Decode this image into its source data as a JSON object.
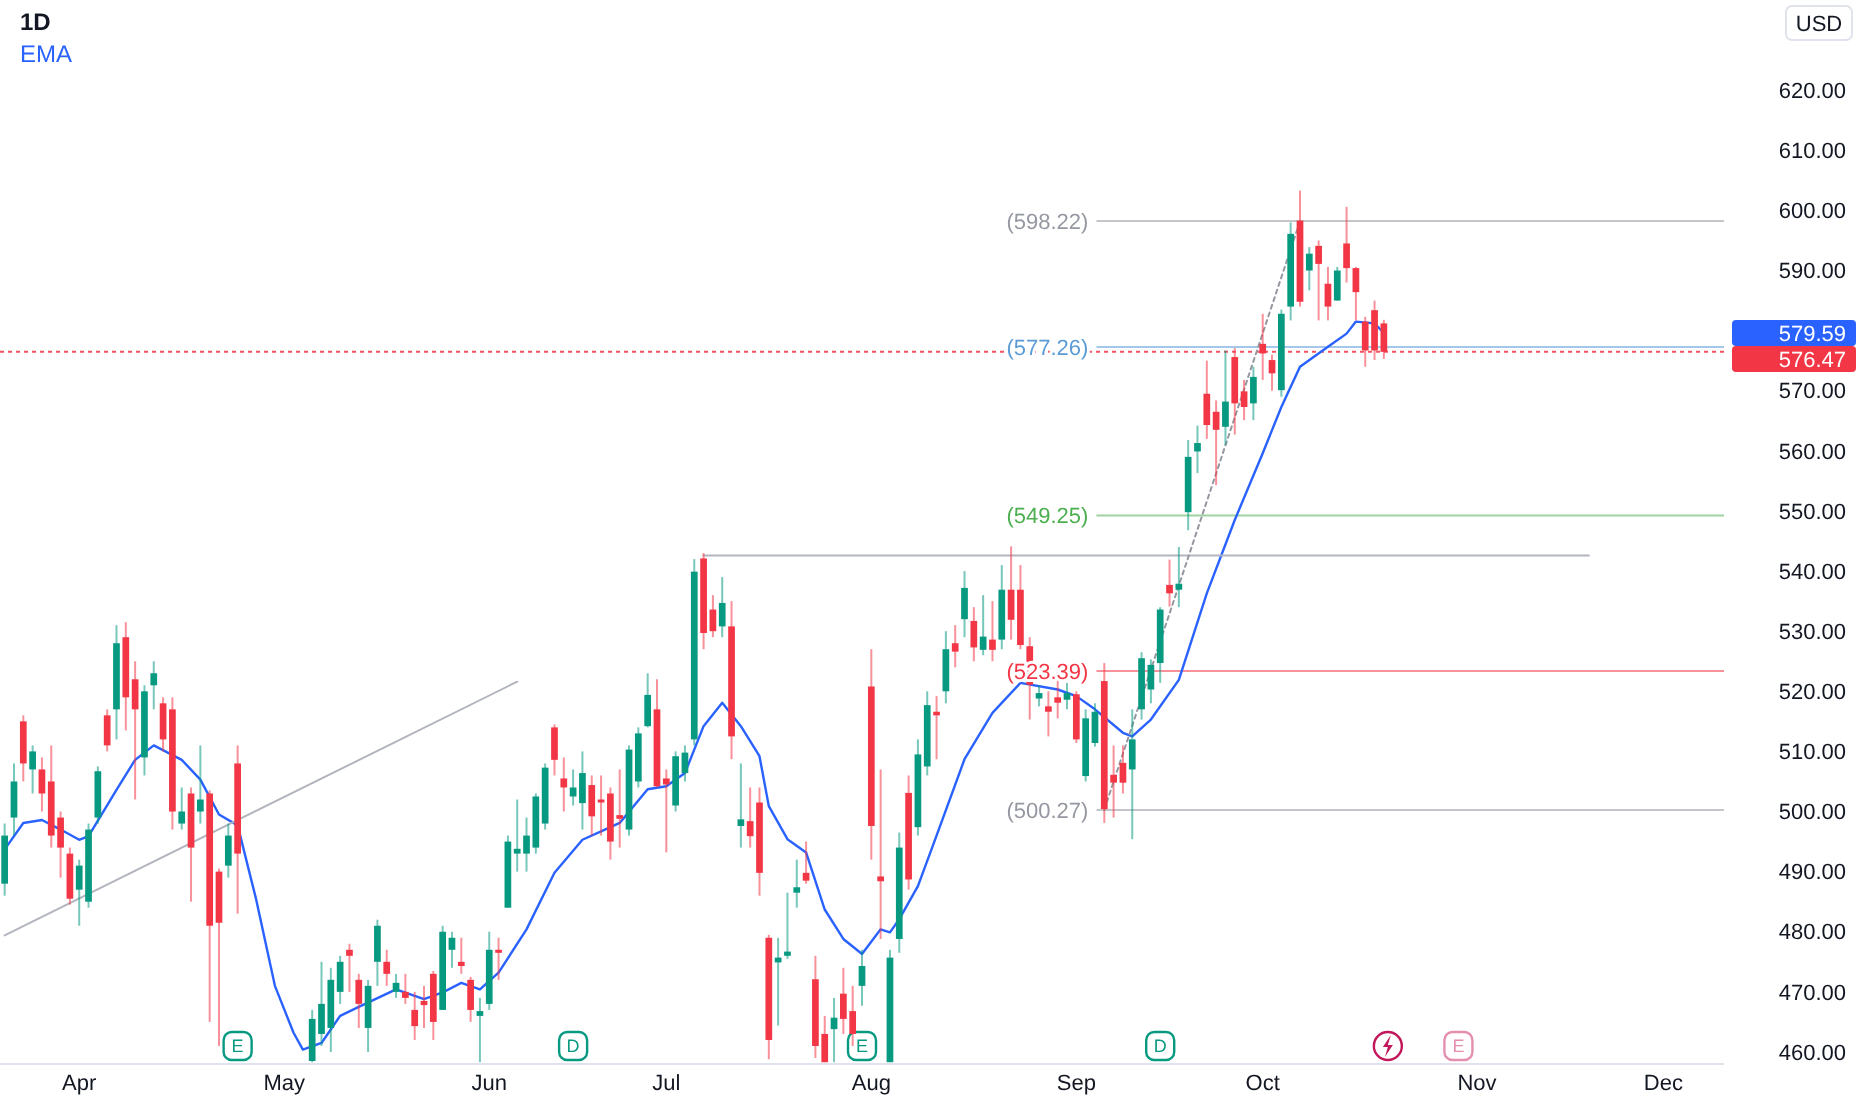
{
  "chart_data": {
    "type": "candlestick",
    "title": "1D",
    "legend": "top left",
    "categories": [
      null,
      null,
      null,
      null,
      null,
      null,
      null,
      null,
      "Apr",
      null,
      null,
      null,
      null,
      null,
      null,
      null,
      null,
      null,
      null,
      null,
      null,
      null,
      null,
      null,
      null,
      null,
      null,
      null,
      null,
      null,
      "May",
      null,
      null,
      null,
      null,
      null,
      null,
      null,
      null,
      null,
      null,
      null,
      null,
      null,
      null,
      null,
      null,
      null,
      null,
      null,
      null,
      null,
      "Jun",
      null,
      null,
      null,
      null,
      null,
      null,
      null,
      null,
      null,
      null,
      null,
      null,
      null,
      null,
      null,
      null,
      null,
      null,
      "Jul",
      null,
      null,
      null,
      null,
      null,
      null,
      null,
      null,
      null,
      null,
      null,
      null,
      null,
      null,
      null,
      null,
      null,
      null,
      null,
      null,
      null,
      "Aug",
      null,
      null,
      null,
      null,
      null,
      null,
      null,
      null,
      null,
      null,
      null,
      null,
      null,
      null,
      null,
      null,
      null,
      null,
      null,
      null,
      null,
      "Sep",
      null,
      null,
      null,
      null,
      null,
      null,
      null,
      null,
      null,
      null,
      null,
      null,
      null,
      null,
      null,
      null,
      null,
      null,
      null,
      "Oct",
      null,
      null,
      null,
      null,
      null,
      null,
      null,
      null,
      null,
      null,
      null,
      null,
      null,
      null,
      null,
      null,
      null,
      null,
      null,
      null,
      null,
      null,
      "Nov",
      null,
      null,
      null,
      null,
      null,
      null,
      null,
      null,
      null,
      null,
      null,
      null,
      null,
      null,
      null,
      null,
      null,
      null,
      null,
      "Dec",
      null,
      null,
      null,
      null,
      null,
      null
    ],
    "ylim": [
      458,
      635
    ],
    "yticks": [
      {
        "value": 460,
        "label": "460.00"
      },
      {
        "value": 470,
        "label": "470.00"
      },
      {
        "value": 480,
        "label": "480.00"
      },
      {
        "value": 490,
        "label": "490.00"
      },
      {
        "value": 500,
        "label": "500.00"
      },
      {
        "value": 510,
        "label": "510.00"
      },
      {
        "value": 520,
        "label": "520.00"
      },
      {
        "value": 530,
        "label": "530.00"
      },
      {
        "value": 540,
        "label": "540.00"
      },
      {
        "value": 550,
        "label": "550.00"
      },
      {
        "value": 560,
        "label": "560.00"
      },
      {
        "value": 570,
        "label": "570.00"
      },
      {
        "value": 590,
        "label": "590.00"
      },
      {
        "value": 600,
        "label": "600.00"
      },
      {
        "value": 610,
        "label": "610.00"
      },
      {
        "value": 620,
        "label": "620.00"
      }
    ],
    "ohlc": [
      [
        488,
        498,
        486,
        496
      ],
      [
        499,
        508,
        496,
        505
      ],
      [
        515,
        516,
        505,
        508
      ],
      [
        507,
        511,
        503,
        510
      ],
      [
        507,
        509,
        500,
        503
      ],
      [
        505,
        511,
        494,
        496
      ],
      [
        499,
        500,
        489,
        494
      ],
      [
        493,
        494,
        484.5,
        485.5
      ],
      [
        487,
        492,
        481,
        491
      ],
      [
        485,
        498,
        484,
        497
      ],
      [
        499,
        507.5,
        498,
        506.7
      ],
      [
        516,
        517,
        510,
        511
      ],
      [
        517,
        531,
        512,
        528
      ],
      [
        529,
        531.5,
        513.5,
        519
      ],
      [
        522,
        525,
        502,
        517
      ],
      [
        509,
        521,
        506,
        520
      ],
      [
        521,
        525,
        517,
        523
      ],
      [
        518,
        519,
        510,
        512
      ],
      [
        517,
        519,
        497,
        500
      ],
      [
        498,
        504,
        497,
        500
      ],
      [
        503,
        504,
        485,
        494
      ],
      [
        500,
        511,
        498,
        502
      ],
      [
        503,
        503.5,
        465,
        481
      ],
      [
        490,
        490.5,
        461,
        481.5
      ],
      [
        491,
        498,
        489,
        496
      ],
      [
        508,
        511,
        483,
        493
      ],
      null,
      null,
      null,
      null,
      null,
      null,
      null,
      [
        458.5,
        467,
        458.3,
        465.5
      ],
      [
        463,
        475,
        461,
        468
      ],
      [
        464,
        474,
        460,
        472
      ],
      [
        470,
        476,
        468,
        475
      ],
      [
        477,
        478,
        470,
        476
      ],
      [
        472,
        473,
        464,
        468
      ],
      [
        464,
        472,
        460,
        471
      ],
      [
        475,
        482,
        471,
        481
      ],
      [
        475,
        477,
        471,
        473
      ],
      [
        470,
        473,
        469,
        471.5
      ],
      [
        470,
        473,
        468,
        469
      ],
      [
        467,
        470,
        462,
        464.3
      ],
      [
        468.5,
        471,
        464,
        467.8
      ],
      [
        473,
        473.5,
        462,
        465
      ],
      [
        467,
        481,
        467,
        480
      ],
      [
        477,
        480,
        474,
        479
      ],
      [
        475,
        479,
        473,
        474.3
      ],
      [
        472,
        472.5,
        465,
        467
      ],
      [
        466,
        469,
        458.3,
        466.8
      ],
      [
        468,
        480,
        467,
        477
      ],
      [
        477,
        479,
        472,
        476.5
      ],
      [
        484,
        496,
        484,
        495
      ],
      [
        493,
        502,
        490,
        493.8
      ],
      [
        493,
        499,
        490,
        496
      ],
      [
        494,
        503,
        493,
        502.5
      ],
      [
        498,
        508,
        497,
        507.3
      ],
      [
        514,
        514.5,
        506,
        508.6
      ],
      [
        505.5,
        509,
        500,
        504
      ],
      [
        502.5,
        507,
        501,
        504
      ],
      [
        501.4,
        510,
        497,
        506.4
      ],
      [
        504.4,
        506,
        496,
        499.2
      ],
      [
        502,
        506,
        496,
        501.5
      ],
      [
        503,
        504,
        492,
        495
      ],
      [
        499.4,
        507,
        494,
        498.8
      ],
      [
        497,
        511,
        496,
        510.3
      ],
      [
        505,
        514,
        504,
        513
      ],
      [
        514.2,
        523,
        514,
        519.4
      ],
      [
        517,
        522,
        504,
        504.2
      ],
      [
        505.5,
        507,
        493.2,
        504.5
      ],
      [
        501,
        510,
        500,
        509.2
      ],
      [
        506.4,
        511,
        505,
        509.8
      ],
      [
        512,
        542,
        511,
        539.9
      ],
      [
        542.1,
        543,
        527,
        529.7
      ],
      [
        533.6,
        536,
        529,
        530
      ],
      [
        530.8,
        539,
        529,
        534.7
      ],
      [
        530.8,
        535,
        508.7,
        512.5
      ],
      [
        497.6,
        508,
        494,
        498.7
      ],
      [
        498.4,
        504,
        494,
        495.9
      ],
      [
        501.5,
        504,
        486,
        489.8
      ],
      [
        479,
        479.5,
        458.8,
        462
      ],
      [
        474.9,
        479,
        464.4,
        475.7
      ],
      [
        476,
        486.5,
        475.5,
        476.7
      ],
      [
        486.5,
        492,
        484,
        487.4
      ],
      [
        489.8,
        495,
        488,
        488.5
      ],
      [
        472.1,
        476,
        459,
        461
      ],
      [
        463,
        466,
        458.3,
        458.3
      ],
      [
        463.8,
        469,
        458.3,
        465.7
      ],
      [
        469.7,
        474,
        463,
        465.5
      ],
      [
        466.8,
        471,
        461,
        463
      ],
      [
        471,
        477,
        467.7,
        474.3
      ],
      [
        520.8,
        527,
        492,
        497.6
      ],
      [
        489.2,
        507,
        478.8,
        488.4
      ],
      [
        458.3,
        477,
        458.3,
        475.7
      ],
      [
        478.8,
        496.5,
        476.5,
        494
      ],
      [
        503.1,
        506,
        487,
        488.7
      ],
      [
        497.4,
        512,
        496,
        509.5
      ],
      [
        507.5,
        520,
        506,
        517.7
      ],
      [
        516.6,
        519.2,
        508.7,
        516
      ],
      [
        520,
        530,
        518,
        527
      ],
      [
        528,
        531,
        524,
        526.6
      ],
      [
        532,
        540,
        529,
        537.2
      ],
      [
        531.7,
        534,
        525,
        527.3
      ],
      [
        526.9,
        536,
        526,
        529.1
      ],
      [
        528.6,
        535,
        525,
        526.9
      ],
      [
        528.6,
        541,
        527,
        536.9
      ],
      [
        536.9,
        544.1,
        528.6,
        531.9
      ],
      [
        536.9,
        541,
        527,
        527.7
      ],
      [
        527.5,
        529,
        515.3,
        521.1
      ],
      [
        518.8,
        521,
        517.5,
        519.7
      ],
      [
        517.5,
        520,
        512.5,
        516.6
      ],
      [
        519,
        523,
        515.5,
        518.1
      ],
      [
        518.6,
        521.4,
        517,
        519.7
      ],
      [
        519.5,
        520,
        511.4,
        512
      ],
      [
        505.9,
        517,
        505,
        515.5
      ],
      [
        511.4,
        518,
        510.8,
        516.6
      ],
      [
        521.7,
        524.7,
        498.1,
        500.4
      ],
      [
        506.1,
        511,
        499,
        504.8
      ],
      [
        508.1,
        511,
        503,
        504.8
      ],
      [
        507,
        517,
        495.4,
        512
      ],
      [
        517,
        526.5,
        515.3,
        525.5
      ],
      [
        520.3,
        525.3,
        518,
        524.4
      ],
      [
        524.7,
        534,
        521.4,
        533.6
      ],
      [
        537.7,
        541.9,
        534.1,
        536.3
      ],
      [
        536.9,
        544,
        534,
        537.9
      ],
      [
        549.8,
        561.8,
        546.8,
        559
      ],
      [
        559.9,
        564.2,
        556.3,
        561.3
      ],
      [
        569.5,
        575,
        562,
        564.3
      ],
      [
        566.5,
        568.4,
        554.3,
        563.5
      ],
      [
        564,
        576.7,
        561,
        568.2
      ],
      [
        575.6,
        577.1,
        562.7,
        567.9
      ],
      [
        569.9,
        571.8,
        565.1,
        567.3
      ],
      [
        567.9,
        574,
        565.1,
        572.3
      ],
      [
        577.8,
        582.8,
        571.8,
        576.2
      ],
      [
        575.1,
        576,
        570,
        572.9
      ],
      [
        570.1,
        583.5,
        569,
        582.8
      ],
      [
        584,
        598,
        581.7,
        596.1
      ],
      [
        598.3,
        603.3,
        584,
        584.8
      ],
      [
        590,
        593.9,
        586.7,
        592.8
      ],
      [
        594.1,
        595,
        581.7,
        591.1
      ],
      [
        587.8,
        590.6,
        581.7,
        584
      ],
      [
        585,
        590.6,
        585,
        590
      ],
      [
        594.5,
        600.6,
        588,
        590.4
      ],
      [
        590.4,
        590.6,
        581.7,
        586.4
      ],
      [
        581.5,
        582.3,
        574,
        576.7
      ],
      [
        583.4,
        585,
        575.1,
        576.7
      ],
      [
        581.2,
        581.8,
        575.3,
        576.47
      ],
      null,
      null,
      null,
      null,
      null,
      null,
      null,
      null,
      null,
      null,
      null,
      null,
      null,
      null,
      null,
      null,
      null,
      null,
      null,
      null,
      null,
      null,
      null,
      null,
      null,
      null,
      null,
      null,
      null,
      null,
      null,
      null,
      null,
      null,
      null,
      null
    ],
    "series": [
      {
        "type": "line",
        "name": "EMA",
        "color": "#2962ff",
        "values": [
          493.7,
          null,
          498.1,
          null,
          498.6,
          null,
          497,
          null,
          495.3,
          495.9,
          null,
          null,
          503.6,
          null,
          508.6,
          null,
          511,
          null,
          null,
          508.6,
          null,
          505.3,
          null,
          499.5,
          null,
          497.7,
          null,
          485.3,
          null,
          471,
          null,
          463.2,
          460.4,
          null,
          461.5,
          null,
          466,
          null,
          467.5,
          null,
          null,
          null,
          470.4,
          null,
          null,
          468.8,
          null,
          469.9,
          null,
          471.5,
          null,
          470.4,
          null,
          473.2,
          null,
          null,
          480.4,
          null,
          null,
          489.8,
          null,
          null,
          495.3,
          null,
          496.7,
          null,
          498.1,
          null,
          null,
          503.7,
          null,
          504.2,
          null,
          506.4,
          null,
          514.2,
          null,
          518.1,
          null,
          514.2,
          null,
          509.2,
          500.9,
          null,
          495.4,
          null,
          493.2,
          null,
          483.7,
          null,
          478.8,
          null,
          476.3,
          null,
          480.4,
          479.9,
          482.1,
          null,
          487.6,
          null,
          496,
          null,
          null,
          508.7,
          null,
          null,
          516.4,
          null,
          null,
          521.4,
          null,
          null,
          null,
          520.3,
          null,
          519.2,
          null,
          517,
          null,
          null,
          513.1,
          512.5,
          null,
          515.3,
          null,
          null,
          521.9,
          null,
          null,
          536.3,
          null,
          null,
          548.5,
          null,
          null,
          559.6,
          null,
          567.3,
          null,
          574,
          null,
          null,
          577.3,
          null,
          579.5,
          581.5,
          null,
          581.2,
          579.6,
          null,
          null,
          null,
          null,
          null,
          null,
          null,
          null,
          null,
          null,
          null,
          null,
          null,
          null,
          null,
          null,
          null,
          null,
          null,
          null,
          null,
          null,
          null,
          null,
          null,
          null,
          null,
          null,
          null,
          null,
          null,
          null,
          null,
          null,
          null,
          null
        ]
      },
      {
        "type": "line",
        "color": "#b2b5be",
        "values": [
          479.4,
          null,
          null,
          null,
          null,
          null,
          null,
          null,
          null,
          null,
          null,
          null,
          null,
          null,
          null,
          null,
          null,
          null,
          null,
          null,
          null,
          null,
          null,
          null,
          null,
          null,
          null,
          null,
          null,
          null,
          null,
          null,
          null,
          null,
          null,
          null,
          null,
          null,
          null,
          null,
          null,
          null,
          null,
          null,
          null,
          null,
          null,
          null,
          null,
          null,
          null,
          null,
          null,
          null,
          null,
          521.6,
          null,
          null,
          null,
          null,
          null,
          null,
          null,
          null,
          null,
          null,
          null,
          null,
          null,
          null,
          null,
          null,
          null,
          null,
          null,
          null,
          null,
          null,
          null,
          null,
          null,
          null,
          null,
          null,
          null,
          null,
          null,
          null,
          null,
          null,
          null,
          null,
          null,
          null,
          null,
          null,
          null,
          null,
          null,
          null,
          null,
          null,
          null,
          null,
          null,
          null,
          null,
          null,
          null,
          null,
          null,
          null,
          null,
          null,
          null,
          null,
          null,
          null,
          null,
          null,
          null,
          null,
          null,
          null,
          null,
          null,
          null,
          null,
          null,
          null,
          null,
          null,
          null,
          null,
          null,
          null,
          null,
          null,
          null,
          null,
          null,
          null,
          null,
          null,
          null,
          null,
          null,
          null,
          null,
          null,
          null,
          null,
          null,
          null,
          null,
          null,
          null,
          null,
          null,
          null,
          null,
          null,
          null,
          null,
          null,
          null,
          null,
          null,
          null,
          null,
          null,
          null,
          null,
          null,
          null,
          null,
          null,
          null,
          null,
          null,
          null,
          null,
          null,
          null,
          null
        ]
      },
      {
        "type": "line",
        "color": "#b2b5be",
        "values": [
          null,
          null,
          null,
          null,
          null,
          null,
          null,
          null,
          null,
          null,
          null,
          null,
          null,
          null,
          null,
          null,
          null,
          null,
          null,
          null,
          null,
          null,
          null,
          null,
          null,
          null,
          null,
          null,
          null,
          null,
          null,
          null,
          null,
          null,
          null,
          null,
          null,
          null,
          null,
          null,
          null,
          null,
          null,
          null,
          null,
          null,
          null,
          null,
          null,
          null,
          null,
          null,
          null,
          null,
          null,
          null,
          null,
          null,
          null,
          null,
          null,
          null,
          null,
          null,
          null,
          null,
          null,
          null,
          null,
          null,
          null,
          null,
          null,
          null,
          null,
          542.6,
          null,
          null,
          null,
          null,
          null,
          null,
          null,
          null,
          null,
          null,
          null,
          null,
          null,
          null,
          null,
          null,
          null,
          null,
          null,
          null,
          null,
          null,
          null,
          null,
          null,
          null,
          null,
          null,
          null,
          null,
          null,
          null,
          null,
          null,
          null,
          null,
          null,
          null,
          null,
          null,
          null,
          null,
          null,
          null,
          null,
          null,
          null,
          null,
          null,
          null,
          null,
          null,
          null,
          null,
          null,
          null,
          null,
          null,
          null,
          null,
          null,
          null,
          null,
          null,
          null,
          null,
          null,
          null,
          null,
          null,
          null,
          null,
          null,
          null,
          null,
          null,
          null,
          null,
          null,
          null,
          null,
          null,
          null,
          null,
          null,
          null,
          null,
          null,
          null,
          null,
          null,
          null,
          null,
          null,
          542.6,
          null,
          null,
          null,
          null,
          null,
          null,
          null,
          null,
          null,
          null,
          null,
          null,
          null,
          null
        ]
      },
      {
        "type": "line",
        "color": "#9598a1",
        "line_style": "dotted",
        "values": [
          null,
          null,
          null,
          null,
          null,
          null,
          null,
          null,
          null,
          null,
          null,
          null,
          null,
          null,
          null,
          null,
          null,
          null,
          null,
          null,
          null,
          null,
          null,
          null,
          null,
          null,
          null,
          null,
          null,
          null,
          null,
          null,
          null,
          null,
          null,
          null,
          null,
          null,
          null,
          null,
          null,
          null,
          null,
          null,
          null,
          null,
          null,
          null,
          null,
          null,
          null,
          null,
          null,
          null,
          null,
          null,
          null,
          null,
          null,
          null,
          null,
          null,
          null,
          null,
          null,
          null,
          null,
          null,
          null,
          null,
          null,
          null,
          null,
          null,
          null,
          null,
          null,
          null,
          null,
          null,
          null,
          null,
          null,
          null,
          null,
          null,
          null,
          null,
          null,
          null,
          null,
          null,
          null,
          null,
          null,
          null,
          null,
          null,
          null,
          null,
          null,
          null,
          null,
          null,
          null,
          null,
          null,
          null,
          null,
          null,
          null,
          null,
          null,
          null,
          null,
          null,
          null,
          null,
          500.3,
          null,
          null,
          null,
          null,
          null,
          null,
          null,
          null,
          null,
          null,
          null,
          null,
          null,
          null,
          null,
          null,
          null,
          null,
          null,
          null,
          598.2,
          null,
          null,
          null,
          null,
          null,
          null,
          null,
          null,
          null,
          null,
          null,
          null,
          null,
          null,
          null,
          null,
          null,
          null,
          null,
          null,
          null,
          null,
          null,
          null,
          null,
          null,
          null,
          null,
          null,
          null,
          null,
          null,
          null,
          null,
          null,
          null,
          null,
          null,
          null,
          null,
          null,
          null,
          null,
          null,
          null
        ]
      }
    ],
    "ref_lines": [
      {
        "axis": "y",
        "value": 598.22,
        "label": "(598.22)",
        "color": "#9598a1"
      },
      {
        "axis": "y",
        "value": 577.26,
        "label": "(577.26)",
        "color": "#5b9bd5"
      },
      {
        "axis": "y",
        "value": 549.25,
        "label": "(549.25)",
        "color": "#4caf50"
      },
      {
        "axis": "y",
        "value": 523.39,
        "label": "(523.39)",
        "color": "#f23645"
      },
      {
        "axis": "y",
        "value": 500.27,
        "label": "(500.27)",
        "color": "#9598a1"
      },
      {
        "axis": "y",
        "value": 576.47,
        "label": "576.47",
        "color": "#f23645",
        "line_style": "dotted"
      }
    ],
    "annotations": [
      "USD",
      "E",
      "D",
      "E",
      "D",
      "E",
      "579.59"
    ]
  }
}
